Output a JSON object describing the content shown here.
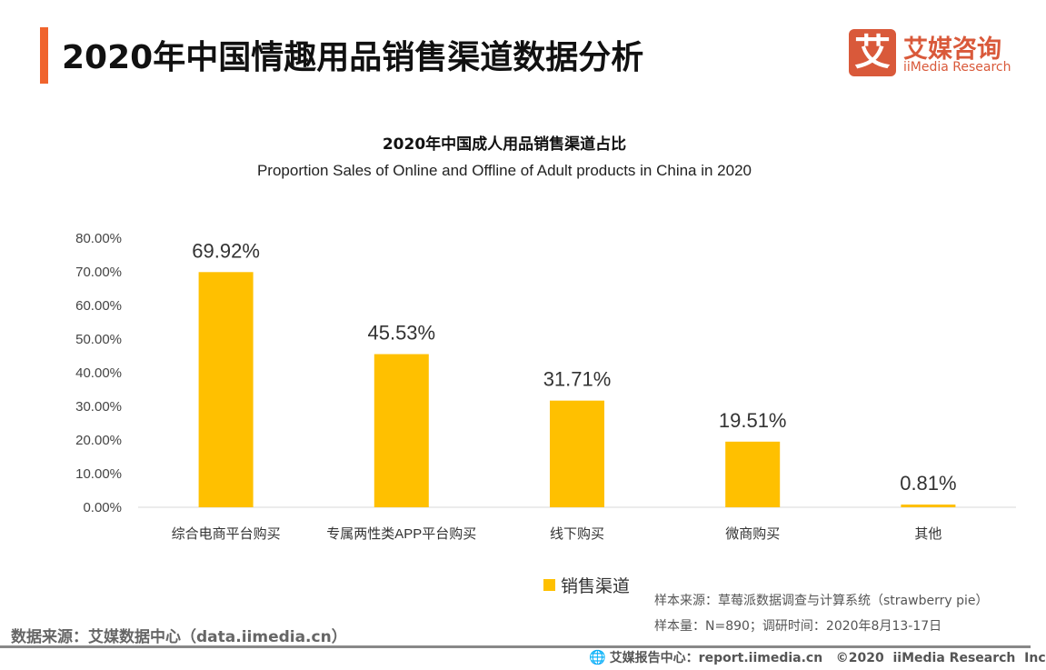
{
  "header": {
    "title": "2020年中国情趣用品销售渠道数据分析",
    "logo_cn": "艾媒咨询",
    "logo_en": "iiMedia Research",
    "logo_mark": "艾",
    "accent": "#f0642d",
    "brand": "#d9593a"
  },
  "chart_data": {
    "type": "bar",
    "title": "2020年中国成人用品销售渠道占比",
    "subtitle": "Proportion Sales of Online and Offline of Adult products in China in 2020",
    "categories": [
      "综合电商平台购买",
      "专属两性类APP平台购买",
      "线下购买",
      "微商购买",
      "其他"
    ],
    "series": [
      {
        "name": "销售渠道",
        "values": [
          69.92,
          45.53,
          31.71,
          19.51,
          0.81
        ],
        "color": "#ffc000"
      }
    ],
    "data_labels": [
      "69.92%",
      "45.53%",
      "31.71%",
      "19.51%",
      "0.81%"
    ],
    "yticks": [
      "0.00%",
      "10.00%",
      "20.00%",
      "30.00%",
      "40.00%",
      "50.00%",
      "60.00%",
      "70.00%",
      "80.00%"
    ],
    "ylim": [
      0,
      80
    ],
    "grid": false,
    "legend": "bottom"
  },
  "notes": {
    "sample_source": "样本来源：草莓派数据调查与计算系统（strawberry pie）",
    "sample_size": "样本量：N=890；调研时间：2020年8月13-17日"
  },
  "source": "数据来源：艾媒数据中心（data.iimedia.cn）",
  "footer": "艾媒报告中心：report.iimedia.cn   ©2020  iiMedia Research  Inc"
}
